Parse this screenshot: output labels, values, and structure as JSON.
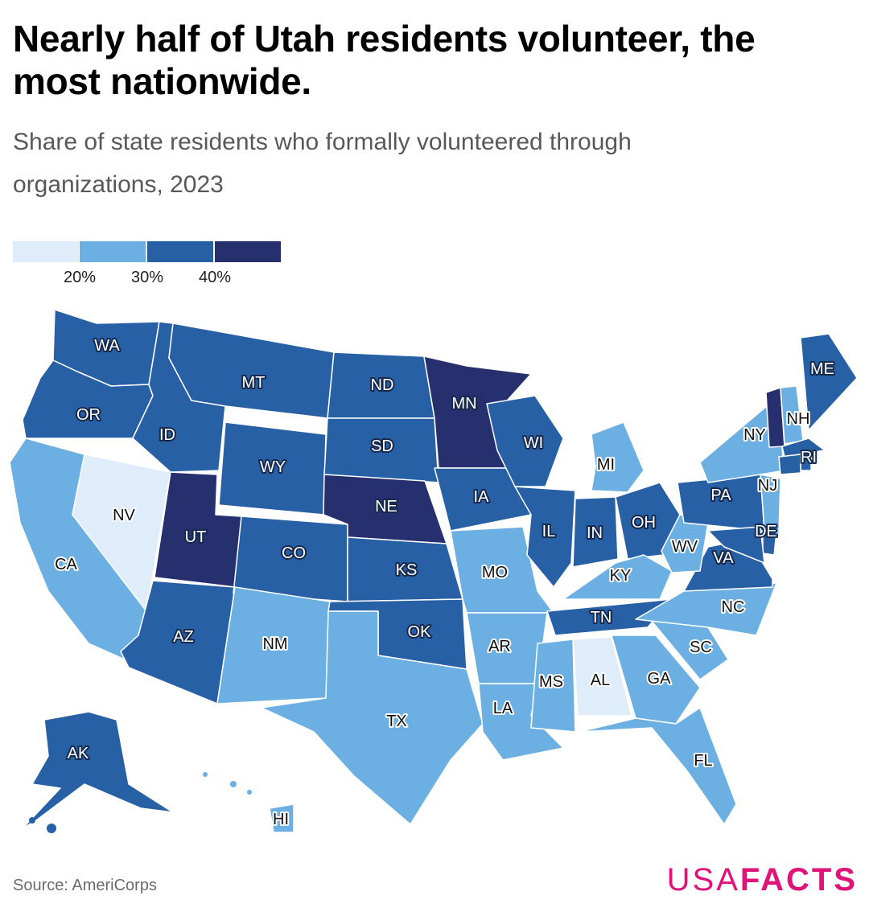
{
  "title": "Nearly half of Utah residents volunteer, the most nationwide.",
  "subtitle": "Share of state residents who formally volunteered through organizations, 2023",
  "legend": {
    "bins": [
      {
        "color": "#dfedfa"
      },
      {
        "color": "#6cb0e3"
      },
      {
        "color": "#2860a6"
      },
      {
        "color": "#27306e"
      }
    ],
    "ticks": [
      "20%",
      "30%",
      "40%"
    ]
  },
  "source": "Source: AmeriCorps",
  "logo": {
    "part1": "USA",
    "part2": "FACTS"
  },
  "chart_data": {
    "type": "choropleth",
    "bin_edges_percent": [
      20,
      30,
      40
    ],
    "states": [
      {
        "code": "WA",
        "bin": 2
      },
      {
        "code": "OR",
        "bin": 2
      },
      {
        "code": "CA",
        "bin": 1
      },
      {
        "code": "NV",
        "bin": 0
      },
      {
        "code": "ID",
        "bin": 2
      },
      {
        "code": "MT",
        "bin": 2
      },
      {
        "code": "WY",
        "bin": 2
      },
      {
        "code": "UT",
        "bin": 3
      },
      {
        "code": "AZ",
        "bin": 2
      },
      {
        "code": "CO",
        "bin": 2
      },
      {
        "code": "NM",
        "bin": 1
      },
      {
        "code": "ND",
        "bin": 2
      },
      {
        "code": "SD",
        "bin": 2
      },
      {
        "code": "NE",
        "bin": 3
      },
      {
        "code": "KS",
        "bin": 2
      },
      {
        "code": "OK",
        "bin": 2
      },
      {
        "code": "TX",
        "bin": 1
      },
      {
        "code": "MN",
        "bin": 3
      },
      {
        "code": "IA",
        "bin": 2
      },
      {
        "code": "MO",
        "bin": 1
      },
      {
        "code": "AR",
        "bin": 1
      },
      {
        "code": "LA",
        "bin": 1
      },
      {
        "code": "WI",
        "bin": 2
      },
      {
        "code": "IL",
        "bin": 2
      },
      {
        "code": "MI",
        "bin": 1
      },
      {
        "code": "IN",
        "bin": 2
      },
      {
        "code": "OH",
        "bin": 2
      },
      {
        "code": "KY",
        "bin": 1
      },
      {
        "code": "TN",
        "bin": 2
      },
      {
        "code": "MS",
        "bin": 1
      },
      {
        "code": "AL",
        "bin": 0
      },
      {
        "code": "GA",
        "bin": 1
      },
      {
        "code": "FL",
        "bin": 1
      },
      {
        "code": "SC",
        "bin": 1
      },
      {
        "code": "NC",
        "bin": 1
      },
      {
        "code": "VA",
        "bin": 2
      },
      {
        "code": "WV",
        "bin": 1
      },
      {
        "code": "PA",
        "bin": 2
      },
      {
        "code": "NY",
        "bin": 1
      },
      {
        "code": "VT",
        "bin": 3
      },
      {
        "code": "NH",
        "bin": 1
      },
      {
        "code": "ME",
        "bin": 2
      },
      {
        "code": "MA",
        "bin": 2
      },
      {
        "code": "RI",
        "bin": 2
      },
      {
        "code": "CT",
        "bin": 2
      },
      {
        "code": "NJ",
        "bin": 1
      },
      {
        "code": "DE",
        "bin": 2
      },
      {
        "code": "MD",
        "bin": 2
      },
      {
        "code": "AK",
        "bin": 2
      },
      {
        "code": "HI",
        "bin": 1
      }
    ]
  }
}
